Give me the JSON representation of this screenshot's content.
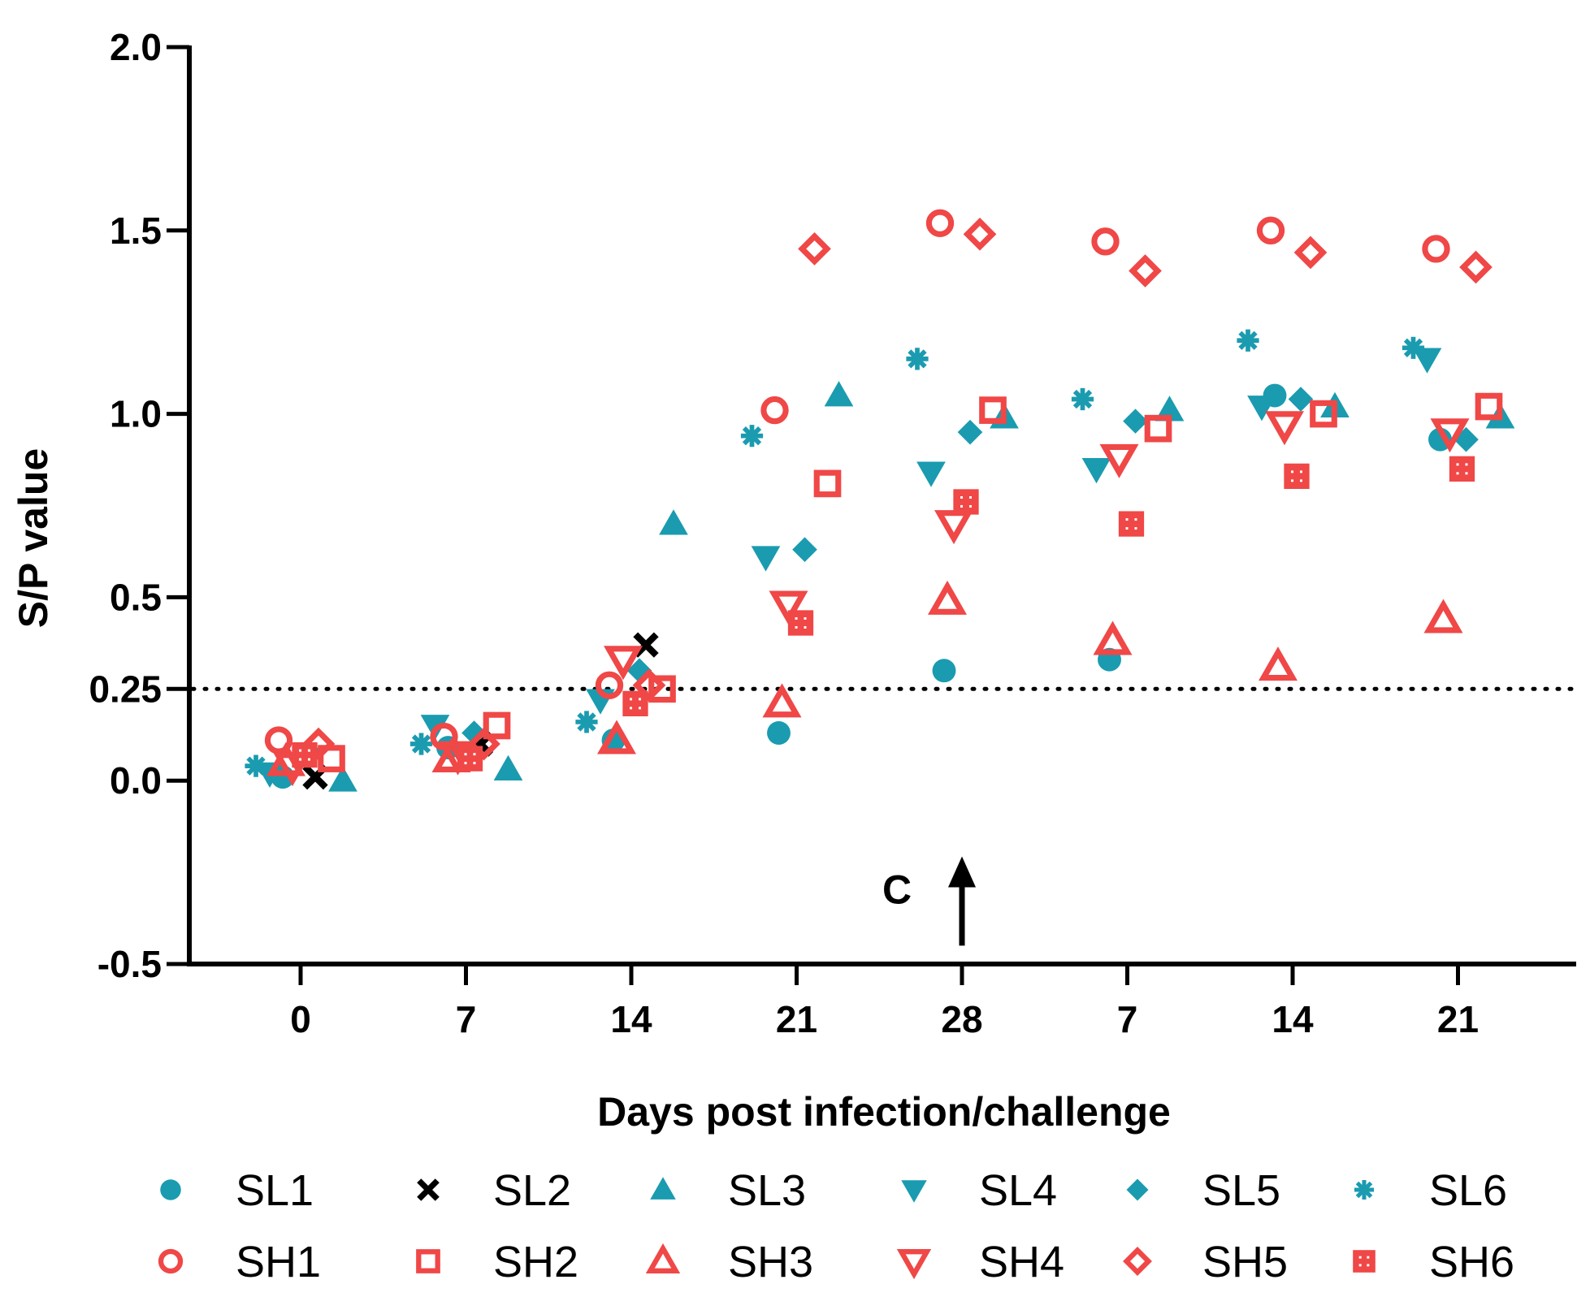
{
  "chart_data": {
    "type": "scatter",
    "title": "",
    "xlabel": "Days post infection/challenge",
    "ylabel": "S/P value",
    "ylim": [
      -0.5,
      2.0
    ],
    "y_ticks": [
      "-0.5",
      "0.0",
      "0.25",
      "0.5",
      "1.0",
      "1.5",
      "2.0"
    ],
    "y_tick_values": [
      -0.5,
      0.0,
      0.25,
      0.5,
      1.0,
      1.5,
      2.0
    ],
    "categories": [
      "0",
      "7",
      "14",
      "21",
      "28",
      "7",
      "14",
      "21"
    ],
    "cutoff": {
      "value": 0.25,
      "style": "dotted"
    },
    "annotation": {
      "text": "C",
      "category_index": 4,
      "arrow_from": -0.45,
      "arrow_to": -0.22
    },
    "colors": {
      "SL": "#1a9bb0",
      "SH": "#f04747",
      "SL2": "#000000"
    },
    "legend_position": "bottom",
    "series": [
      {
        "name": "SL1",
        "group": "SL",
        "marker": "circle",
        "points": [
          [
            0,
            0.01
          ],
          [
            1,
            0.09
          ],
          [
            2,
            0.11
          ],
          [
            3,
            0.13
          ],
          [
            4,
            0.3
          ],
          [
            5,
            0.33
          ],
          [
            6,
            1.05
          ],
          [
            7,
            0.93
          ]
        ]
      },
      {
        "name": "SL2",
        "group": "SL2",
        "marker": "cross",
        "points": [
          [
            0,
            0.01
          ],
          [
            1,
            0.1
          ],
          [
            2,
            0.37
          ]
        ]
      },
      {
        "name": "SL3",
        "group": "SL",
        "marker": "triangle-up",
        "points": [
          [
            0,
            0.0
          ],
          [
            1,
            0.03
          ],
          [
            2,
            0.7
          ],
          [
            3,
            1.05
          ],
          [
            4,
            0.99
          ],
          [
            5,
            1.01
          ],
          [
            6,
            1.02
          ],
          [
            7,
            0.99
          ]
        ]
      },
      {
        "name": "SL4",
        "group": "SL",
        "marker": "triangle-down",
        "points": [
          [
            0,
            0.02
          ],
          [
            1,
            0.15
          ],
          [
            2,
            0.22
          ],
          [
            3,
            0.61
          ],
          [
            4,
            0.84
          ],
          [
            5,
            0.85
          ],
          [
            6,
            1.02
          ],
          [
            7,
            1.15
          ]
        ]
      },
      {
        "name": "SL5",
        "group": "SL",
        "marker": "diamond",
        "points": [
          [
            0,
            0.08
          ],
          [
            1,
            0.13
          ],
          [
            2,
            0.3
          ],
          [
            3,
            0.63
          ],
          [
            4,
            0.95
          ],
          [
            5,
            0.98
          ],
          [
            6,
            1.04
          ],
          [
            7,
            0.93
          ]
        ]
      },
      {
        "name": "SL6",
        "group": "SL",
        "marker": "asterisk",
        "points": [
          [
            0,
            0.04
          ],
          [
            1,
            0.1
          ],
          [
            2,
            0.16
          ],
          [
            3,
            0.94
          ],
          [
            4,
            1.15
          ],
          [
            5,
            1.04
          ],
          [
            6,
            1.2
          ],
          [
            7,
            1.18
          ]
        ]
      },
      {
        "name": "SH1",
        "group": "SH",
        "marker": "circle-open",
        "points": [
          [
            0,
            0.11
          ],
          [
            1,
            0.12
          ],
          [
            2,
            0.26
          ],
          [
            3,
            1.01
          ],
          [
            4,
            1.52
          ],
          [
            5,
            1.47
          ],
          [
            6,
            1.5
          ],
          [
            7,
            1.45
          ]
        ]
      },
      {
        "name": "SH2",
        "group": "SH",
        "marker": "square-open",
        "points": [
          [
            0,
            0.06
          ],
          [
            1,
            0.15
          ],
          [
            2,
            0.25
          ],
          [
            3,
            0.81
          ],
          [
            4,
            1.01
          ],
          [
            5,
            0.96
          ],
          [
            6,
            1.0
          ],
          [
            7,
            1.02
          ]
        ]
      },
      {
        "name": "SH3",
        "group": "SH",
        "marker": "triangle-up-open",
        "points": [
          [
            0,
            0.05
          ],
          [
            1,
            0.06
          ],
          [
            2,
            0.11
          ],
          [
            3,
            0.21
          ],
          [
            4,
            0.49
          ],
          [
            5,
            0.38
          ],
          [
            6,
            0.31
          ],
          [
            7,
            0.44
          ]
        ]
      },
      {
        "name": "SH4",
        "group": "SH",
        "marker": "triangle-down-open",
        "points": [
          [
            0,
            0.04
          ],
          [
            1,
            0.07
          ],
          [
            2,
            0.33
          ],
          [
            3,
            0.48
          ],
          [
            4,
            0.7
          ],
          [
            5,
            0.88
          ],
          [
            6,
            0.97
          ],
          [
            7,
            0.95
          ]
        ]
      },
      {
        "name": "SH5",
        "group": "SH",
        "marker": "diamond-open",
        "points": [
          [
            0,
            0.1
          ],
          [
            1,
            0.1
          ],
          [
            2,
            0.26
          ],
          [
            3,
            1.45
          ],
          [
            4,
            1.49
          ],
          [
            5,
            1.39
          ],
          [
            6,
            1.44
          ],
          [
            7,
            1.4
          ]
        ]
      },
      {
        "name": "SH6",
        "group": "SH",
        "marker": "square-dotted",
        "points": [
          [
            0,
            0.07
          ],
          [
            1,
            0.06
          ],
          [
            2,
            0.21
          ],
          [
            3,
            0.43
          ],
          [
            4,
            0.76
          ],
          [
            5,
            0.7
          ],
          [
            6,
            0.83
          ],
          [
            7,
            0.85
          ]
        ]
      }
    ]
  }
}
